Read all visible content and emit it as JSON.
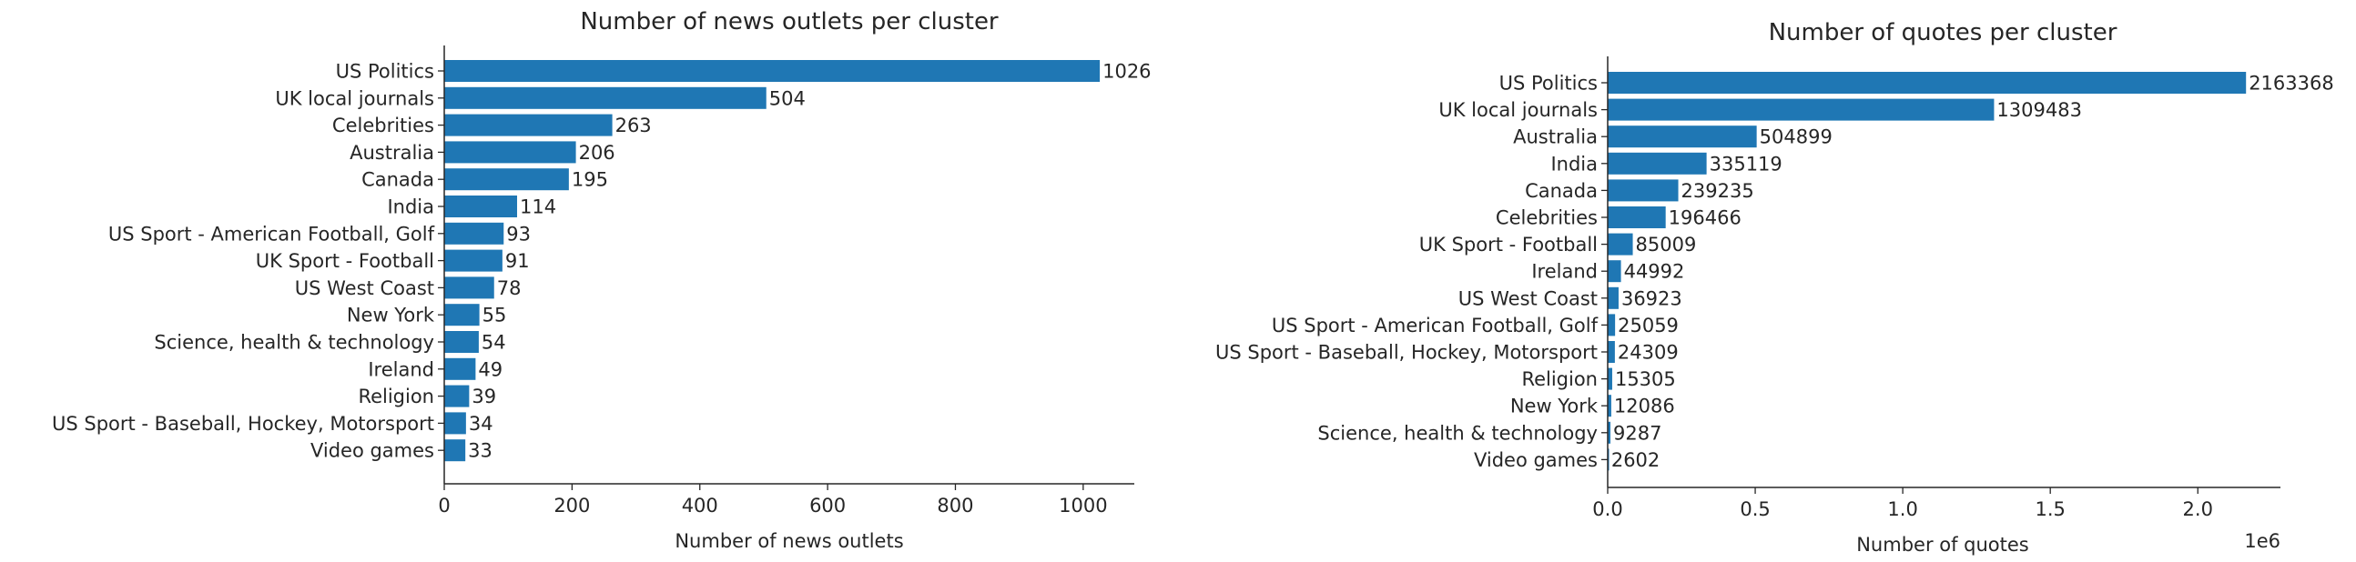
{
  "chart_data": [
    {
      "type": "bar",
      "orientation": "horizontal",
      "title": "Number of news outlets per cluster",
      "xlabel": "Number of news outlets",
      "ylabel": "",
      "xlim": [
        0,
        1080
      ],
      "xticks": [
        0,
        200,
        400,
        600,
        800,
        1000
      ],
      "xtick_labels": [
        "0",
        "200",
        "400",
        "600",
        "800",
        "1000"
      ],
      "grid": false,
      "color": "#1f77b4",
      "categories": [
        "US Politics",
        "UK local journals",
        "Celebrities",
        "Australia",
        "Canada",
        "India",
        "US Sport - American Football, Golf",
        "UK Sport - Football",
        "US West Coast",
        "New York",
        "Science, health & technology",
        "Ireland",
        "Religion",
        "US Sport - Baseball, Hockey, Motorsport",
        "Video games"
      ],
      "values": [
        1026,
        504,
        263,
        206,
        195,
        114,
        93,
        91,
        78,
        55,
        54,
        49,
        39,
        34,
        33
      ],
      "value_labels": [
        "1026",
        "504",
        "263",
        "206",
        "195",
        "114",
        "93",
        "91",
        "78",
        "55",
        "54",
        "49",
        "39",
        "34",
        "33"
      ]
    },
    {
      "type": "bar",
      "orientation": "horizontal",
      "title": "Number of quotes per cluster",
      "xlabel": "Number of quotes",
      "ylabel": "",
      "xlim": [
        0,
        2280000
      ],
      "xticks": [
        0,
        500000,
        1000000,
        1500000,
        2000000
      ],
      "xtick_labels": [
        "0.0",
        "0.5",
        "1.0",
        "1.5",
        "2.0"
      ],
      "offset_label": "1e6",
      "grid": false,
      "color": "#1f77b4",
      "categories": [
        "US Politics",
        "UK local journals",
        "Australia",
        "India",
        "Canada",
        "Celebrities",
        "UK Sport - Football",
        "Ireland",
        "US West Coast",
        "US Sport - American Football, Golf",
        "US Sport - Baseball, Hockey, Motorsport",
        "Religion",
        "New York",
        "Science, health & technology",
        "Video games"
      ],
      "values": [
        2163368,
        1309483,
        504899,
        335119,
        239235,
        196466,
        85009,
        44992,
        36923,
        25059,
        24309,
        15305,
        12086,
        9287,
        2602
      ],
      "value_labels": [
        "2163368",
        "1309483",
        "504899",
        "335119",
        "239235",
        "196466",
        "85009",
        "44992",
        "36923",
        "25059",
        "24309",
        "15305",
        "12086",
        "9287",
        "2602"
      ]
    }
  ]
}
